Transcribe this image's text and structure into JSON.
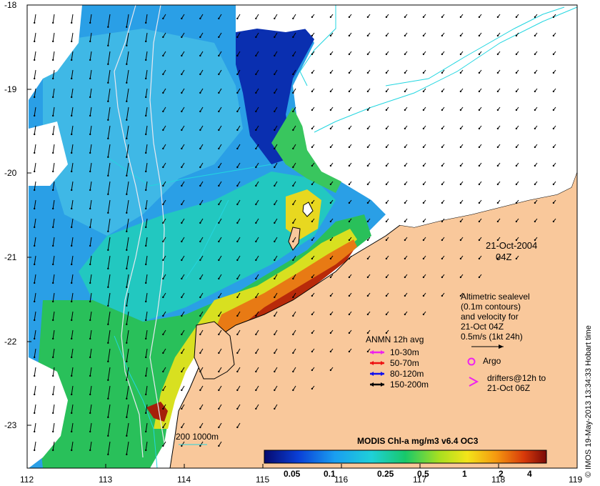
{
  "map": {
    "lat_labels": [
      "-18",
      "-19",
      "-20",
      "-21",
      "-22",
      "-23"
    ],
    "lon_labels": [
      "112",
      "113",
      "114",
      "115",
      "116",
      "117",
      "118",
      "119"
    ],
    "date_label": "21-Oct-2004",
    "time_label": "04Z",
    "credit": "© IMOS 19-May-2013 13:34:33 Hobart time",
    "colors": {
      "land": "#f9c89b",
      "contour": "#22d6e0",
      "isobath": "#e8e8f0",
      "arrow": "#000000"
    }
  },
  "altimetry": {
    "lines": [
      "Altimetric sealevel",
      "(0.1m contours)",
      "and velocity for",
      "21-Oct 04Z",
      "0.5m/s (1kt 24h)"
    ]
  },
  "anmn": {
    "title": "ANMN 12h avg",
    "items": [
      {
        "label": "10-30m",
        "color": "#ee22ee"
      },
      {
        "label": "50-70m",
        "color": "#ee1111"
      },
      {
        "label": "80-120m",
        "color": "#1111ee"
      },
      {
        "label": "150-200m",
        "color": "#000000"
      }
    ]
  },
  "argo": {
    "label": "Argo",
    "color": "#ee22ee"
  },
  "drifters": {
    "line1": "drifters@12h to",
    "line2": "21-Oct 06Z",
    "color": "#ee22ee"
  },
  "bathy_legend": {
    "label": "200  1000m"
  },
  "colorbar": {
    "title": "MODIS Chl-a mg/m3 v6.4 OC3",
    "ticks": [
      "0.05",
      "0.1",
      "0.25",
      "0.5",
      "1",
      "2",
      "4"
    ]
  }
}
